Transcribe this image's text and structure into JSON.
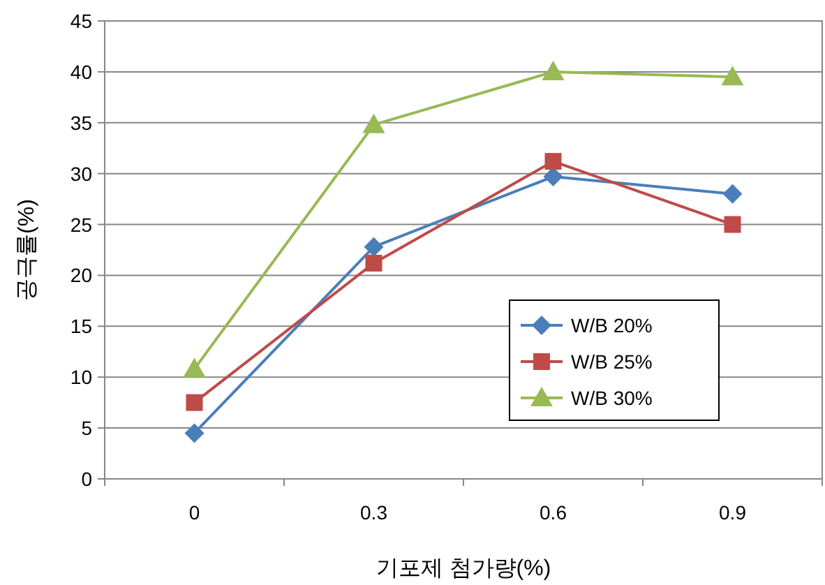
{
  "chart_data": {
    "type": "line",
    "xlabel": "기포제 첨가량(%)",
    "ylabel": "공극률(%)",
    "categories": [
      "0",
      "0.3",
      "0.6",
      "0.9"
    ],
    "series": [
      {
        "name": "W/B 20%",
        "color": "#4a7ebb",
        "marker": "diamond",
        "values": [
          4.5,
          22.8,
          29.7,
          28
        ]
      },
      {
        "name": "W/B 25%",
        "color": "#be4b48",
        "marker": "square",
        "values": [
          7.5,
          21.2,
          31.2,
          25
        ]
      },
      {
        "name": "W/B 30%",
        "color": "#98b954",
        "marker": "triangle",
        "values": [
          10.8,
          34.8,
          40,
          39.5
        ]
      }
    ],
    "ylim": [
      0,
      45
    ],
    "yticks": [
      0,
      5,
      10,
      15,
      20,
      25,
      30,
      35,
      40,
      45
    ],
    "grid": "y",
    "legend": "right"
  }
}
